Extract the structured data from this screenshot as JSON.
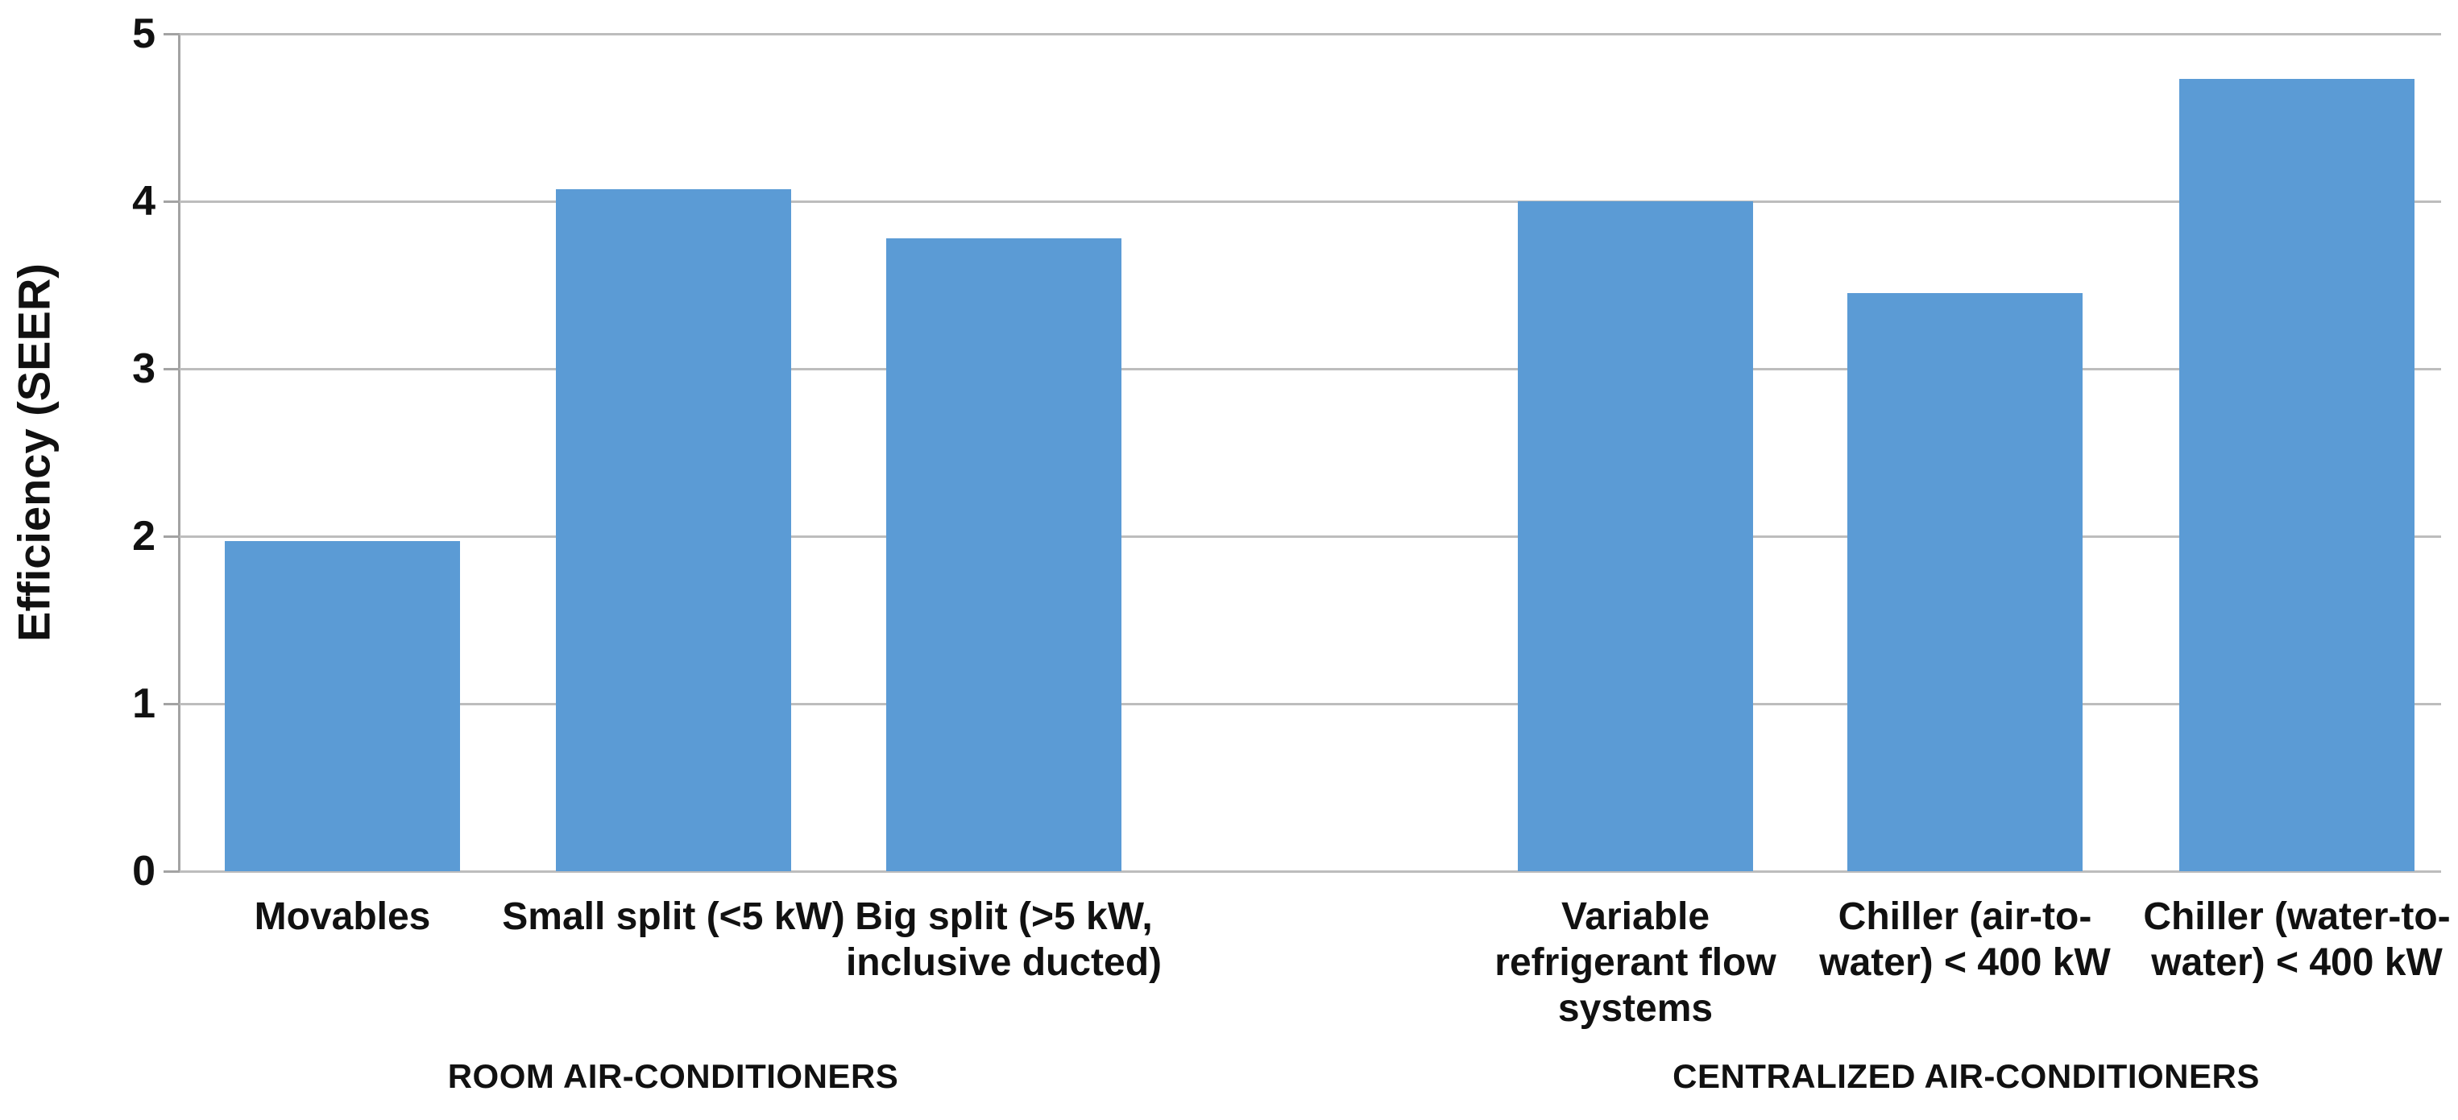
{
  "chart_data": {
    "type": "bar",
    "title": "",
    "xlabel": "",
    "ylabel": "Efficiency (SEER)",
    "ylim": [
      0,
      5
    ],
    "yticks": [
      5,
      4,
      3,
      2,
      1,
      0
    ],
    "grid": "horizontal",
    "legend": "none",
    "categories": [
      "Movables",
      "Small split (<5 kW)",
      "Big split (>5 kW, inclusive ducted)",
      "Variable refrigerant flow systems",
      "Chiller (air-to-water) < 400 kW",
      "Chiller (water-to-water) < 400 kW"
    ],
    "values": [
      1.97,
      4.07,
      3.78,
      4.0,
      3.45,
      4.73
    ],
    "category_label_lines": [
      [
        "Movables"
      ],
      [
        "Small split (<5 kW)"
      ],
      [
        "Big split (>5 kW,",
        "inclusive ducted)"
      ],
      [
        "Variable",
        "refrigerant flow",
        "systems"
      ],
      [
        "Chiller (air-to-",
        "water) < 400 kW"
      ],
      [
        "Chiller (water-to-",
        "water) < 400 kW"
      ]
    ],
    "groups": [
      {
        "label": "ROOM AIR-CONDITIONERS",
        "bar_indexes": [
          0,
          1,
          2
        ]
      },
      {
        "label": "CENTRALIZED AIR-CONDITIONERS",
        "bar_indexes": [
          3,
          4,
          5
        ]
      }
    ],
    "colors": {
      "bar": "#5b9bd5",
      "gridline": "#bdbdbd",
      "axis_line": "#a3a3a3",
      "text": "#111111",
      "background": "#ffffff"
    }
  }
}
